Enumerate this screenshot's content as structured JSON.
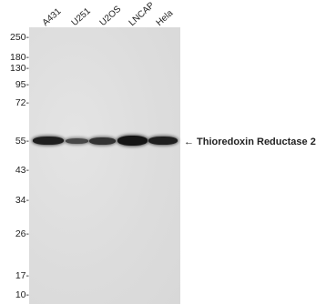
{
  "lanes": [
    "A431",
    "U251",
    "U2OS",
    "LNCAP",
    "Hela"
  ],
  "markers": [
    "250-",
    "180-",
    "130-",
    "95-",
    "72-",
    "55-",
    "43-",
    "34-",
    "26-",
    "17-",
    "10-"
  ],
  "annotation": {
    "arrow": "←",
    "label": "Thioredoxin Reductase 2"
  },
  "bands": [
    {
      "lane": "A431",
      "intensity": 0.95
    },
    {
      "lane": "U251",
      "intensity": 0.75
    },
    {
      "lane": "U2OS",
      "intensity": 0.85
    },
    {
      "lane": "LNCAP",
      "intensity": 1.0
    },
    {
      "lane": "Hela",
      "intensity": 0.95
    }
  ]
}
